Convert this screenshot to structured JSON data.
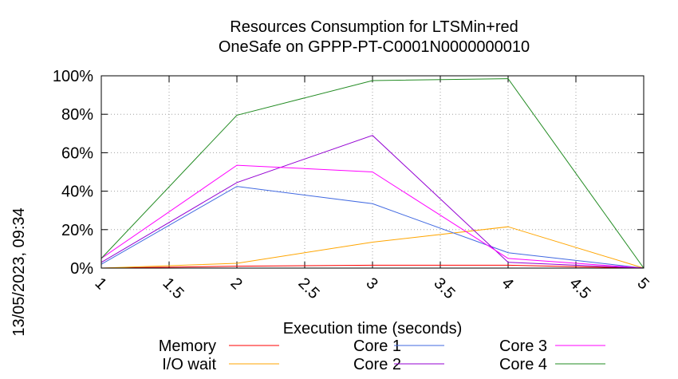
{
  "chart_data": {
    "type": "line",
    "title": "Resources Consumption for LTSMin+red",
    "subtitle": "OneSafe on GPPP-PT-C0001N0000000010",
    "xlabel": "Execution time (seconds)",
    "ylabel": "",
    "timestamp": "13/05/2023, 09:34",
    "xlim": [
      1,
      5
    ],
    "ylim": [
      0,
      100
    ],
    "x_ticks": [
      "1",
      "1.5",
      "2",
      "2.5",
      "3",
      "3.5",
      "4",
      "4.5",
      "5"
    ],
    "y_ticks": [
      "0%",
      "20%",
      "40%",
      "60%",
      "80%",
      "100%"
    ],
    "grid": true,
    "legend_position": "bottom",
    "x": [
      1,
      2,
      3,
      4,
      5
    ],
    "series": [
      {
        "name": "Memory",
        "color": "#ff0000",
        "values": [
          0,
          1,
          1.5,
          1.5,
          0
        ]
      },
      {
        "name": "I/O wait",
        "color": "#ffa500",
        "values": [
          0,
          2.5,
          13.5,
          21.5,
          0
        ]
      },
      {
        "name": "Core 1",
        "color": "#4169e1",
        "values": [
          2,
          42.5,
          33.5,
          8,
          0
        ]
      },
      {
        "name": "Core 2",
        "color": "#9400d3",
        "values": [
          3,
          44.5,
          69,
          3,
          0
        ]
      },
      {
        "name": "Core 3",
        "color": "#ff00ff",
        "values": [
          5,
          53.5,
          50,
          5,
          0
        ]
      },
      {
        "name": "Core 4",
        "color": "#228b22",
        "values": [
          5,
          79.5,
          97.5,
          98.5,
          0
        ]
      }
    ]
  }
}
